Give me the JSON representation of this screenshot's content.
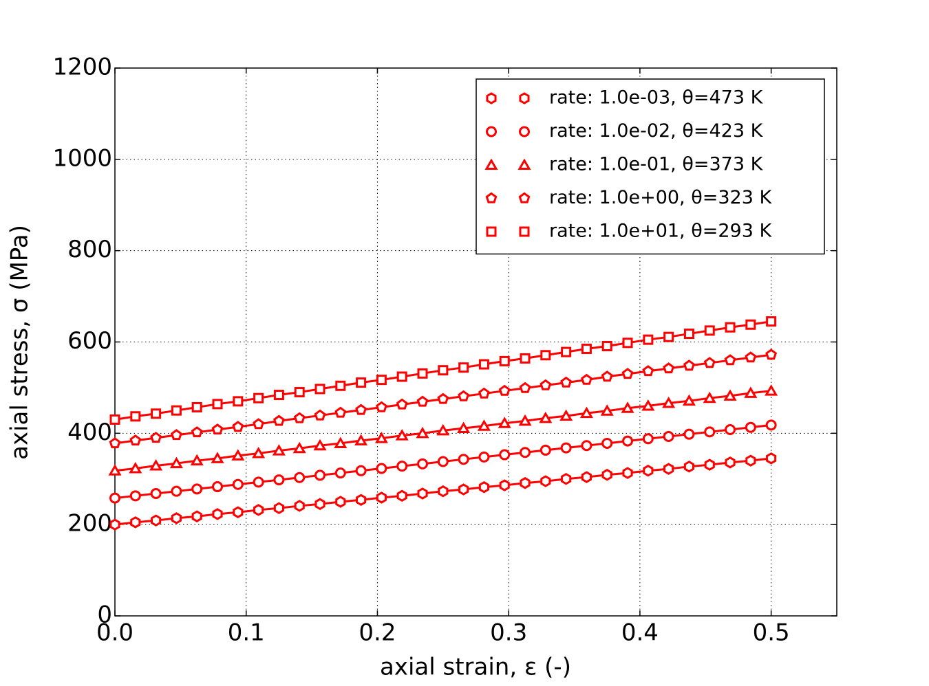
{
  "chart_data": {
    "type": "line",
    "xlabel": "axial strain, ε (-)",
    "ylabel": "axial stress, σ (MPa)",
    "x": [
      0,
      0.015625,
      0.03125,
      0.046875,
      0.0625,
      0.078125,
      0.09375,
      0.109375,
      0.125,
      0.140625,
      0.15625,
      0.171875,
      0.1875,
      0.203125,
      0.21875,
      0.234375,
      0.25,
      0.265625,
      0.28125,
      0.296875,
      0.3125,
      0.328125,
      0.34375,
      0.359375,
      0.375,
      0.390625,
      0.40625,
      0.421875,
      0.4375,
      0.453125,
      0.46875,
      0.484375,
      0.5
    ],
    "series": [
      {
        "name": "rate: 1.0e-03, θ=473 K",
        "color": "#ff0000",
        "marker": "hexagon",
        "values": [
          200,
          205,
          209,
          214,
          218,
          223,
          227,
          232,
          236,
          241,
          245,
          250,
          254,
          259,
          263,
          268,
          273,
          277,
          282,
          286,
          291,
          295,
          300,
          304,
          309,
          313,
          318,
          322,
          327,
          331,
          336,
          340,
          345
        ]
      },
      {
        "name": "rate: 1.0e-02, θ=423 K",
        "color": "#ff0000",
        "marker": "circle",
        "values": [
          258,
          263,
          268,
          273,
          278,
          283,
          288,
          293,
          298,
          303,
          308,
          313,
          318,
          323,
          328,
          333,
          338,
          343,
          348,
          353,
          358,
          363,
          368,
          373,
          378,
          383,
          388,
          393,
          398,
          403,
          408,
          413,
          418
        ]
      },
      {
        "name": "rate: 1.0e-01, θ=373 K",
        "color": "#ff0000",
        "marker": "triangle",
        "values": [
          318,
          323,
          329,
          334,
          340,
          345,
          351,
          356,
          362,
          367,
          373,
          378,
          384,
          389,
          395,
          400,
          406,
          411,
          416,
          422,
          427,
          433,
          438,
          444,
          449,
          455,
          460,
          466,
          471,
          477,
          482,
          488,
          493
        ]
      },
      {
        "name": "rate: 1.0e+00, θ=323 K",
        "color": "#ff0000",
        "marker": "pentagon",
        "values": [
          378,
          384,
          390,
          396,
          402,
          408,
          414,
          420,
          427,
          433,
          439,
          445,
          451,
          457,
          463,
          469,
          475,
          481,
          487,
          493,
          499,
          505,
          511,
          517,
          524,
          530,
          536,
          542,
          548,
          554,
          560,
          566,
          572
        ]
      },
      {
        "name": "rate: 1.0e+01, θ=293 K",
        "color": "#ff0000",
        "marker": "square",
        "values": [
          430,
          437,
          443,
          450,
          457,
          464,
          470,
          477,
          484,
          490,
          497,
          504,
          511,
          517,
          524,
          531,
          538,
          544,
          551,
          558,
          564,
          571,
          578,
          585,
          591,
          598,
          605,
          611,
          618,
          625,
          632,
          638,
          645
        ]
      }
    ],
    "xlim": [
      0,
      0.55
    ],
    "ylim": [
      0,
      1200
    ],
    "xticks": [
      {
        "value": 0,
        "label": "0.0"
      },
      0.1,
      0.2,
      0.3,
      0.4,
      0.5
    ],
    "yticks": [
      0,
      200,
      400,
      600,
      800,
      1000,
      1200
    ],
    "grid": true,
    "legend": "upper right"
  }
}
